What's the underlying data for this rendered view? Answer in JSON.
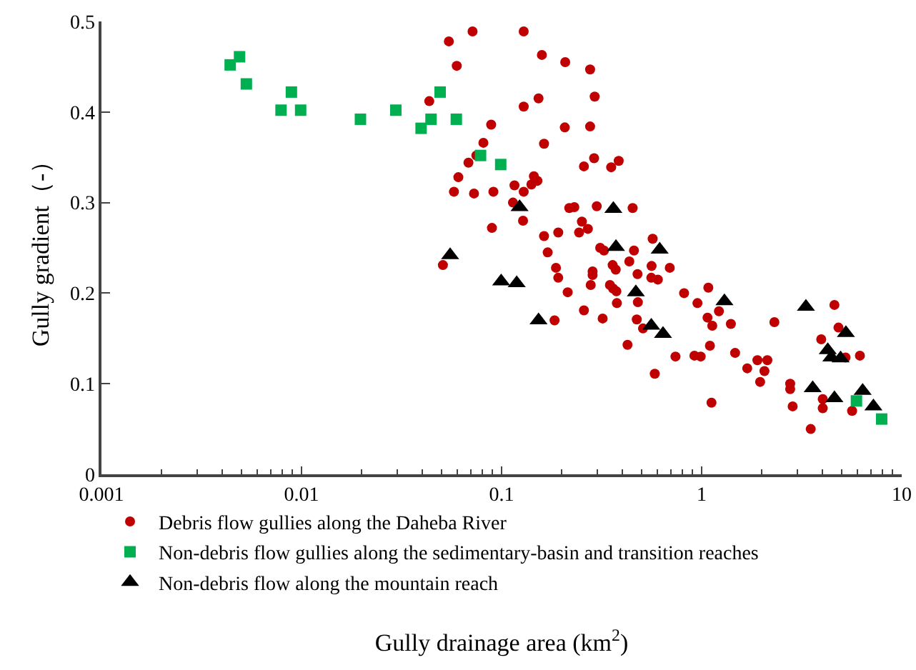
{
  "chart_data": {
    "type": "scatter",
    "xlabel": "Gully drainage area (km$^{2}$)",
    "ylabel": "Gully gradient（-）",
    "log": "x",
    "xlim": [
      0.001,
      10
    ],
    "xticks": [
      0.001,
      0.01,
      0.1,
      1,
      10
    ],
    "ylim": [
      0,
      0.5
    ],
    "yticks": [
      0,
      0.1,
      0.2,
      0.3,
      0.4,
      0.5
    ],
    "grid": false,
    "legend": "bottom left",
    "series": [
      {
        "name": "Debris flow gullies along the Daheba River",
        "color": "#c00000",
        "marker": "circle",
        "x": [
          0.0545,
          0.0716,
          0.129,
          0.0597,
          0.159,
          0.208,
          0.277,
          0.0435,
          0.129,
          0.153,
          0.292,
          0.0887,
          0.207,
          0.277,
          0.0811,
          0.163,
          0.0748,
          0.0683,
          0.29,
          0.258,
          0.353,
          0.385,
          0.0608,
          0.0578,
          0.0728,
          0.091,
          0.116,
          0.129,
          0.141,
          0.145,
          0.151,
          0.114,
          0.128,
          0.0895,
          0.218,
          0.231,
          0.299,
          0.452,
          0.252,
          0.27,
          0.244,
          0.163,
          0.192,
          0.569,
          0.0509,
          0.17,
          0.187,
          0.192,
          0.214,
          0.184,
          0.258,
          0.32,
          0.279,
          0.285,
          0.285,
          0.311,
          0.325,
          0.459,
          0.359,
          0.372,
          0.435,
          0.478,
          0.562,
          0.693,
          0.56,
          0.604,
          0.348,
          0.361,
          0.375,
          0.377,
          0.48,
          0.474,
          0.509,
          0.426,
          0.583,
          0.74,
          0.817,
          0.953,
          1.08,
          1.07,
          1.13,
          1.22,
          1.4,
          1.1,
          0.92,
          0.989,
          1.47,
          1.12,
          1.69,
          1.9,
          2.13,
          2.06,
          1.96,
          2.31,
          2.77,
          2.77,
          2.85,
          3.51,
          4.03,
          4.03,
          3.96,
          4.61,
          4.83,
          6.18,
          5.24,
          5.65
        ],
        "values": [
          0.478,
          0.489,
          0.489,
          0.451,
          0.463,
          0.455,
          0.447,
          0.412,
          0.406,
          0.415,
          0.417,
          0.386,
          0.383,
          0.384,
          0.366,
          0.365,
          0.352,
          0.344,
          0.349,
          0.34,
          0.339,
          0.346,
          0.328,
          0.312,
          0.31,
          0.312,
          0.319,
          0.312,
          0.32,
          0.329,
          0.324,
          0.3,
          0.28,
          0.272,
          0.294,
          0.295,
          0.296,
          0.294,
          0.279,
          0.271,
          0.267,
          0.263,
          0.267,
          0.26,
          0.231,
          0.245,
          0.228,
          0.217,
          0.201,
          0.17,
          0.181,
          0.172,
          0.209,
          0.224,
          0.22,
          0.25,
          0.247,
          0.247,
          0.231,
          0.226,
          0.235,
          0.221,
          0.23,
          0.228,
          0.217,
          0.215,
          0.209,
          0.205,
          0.202,
          0.189,
          0.19,
          0.171,
          0.161,
          0.143,
          0.111,
          0.13,
          0.2,
          0.189,
          0.206,
          0.173,
          0.164,
          0.18,
          0.166,
          0.142,
          0.131,
          0.13,
          0.134,
          0.079,
          0.117,
          0.126,
          0.126,
          0.114,
          0.102,
          0.168,
          0.1,
          0.094,
          0.075,
          0.05,
          0.083,
          0.073,
          0.149,
          0.187,
          0.162,
          0.131,
          0.129,
          0.07
        ]
      },
      {
        "name": "Non-debris flow gullies along the sedimentary-basin and transition reaches",
        "color": "#00b050",
        "marker": "square",
        "x": [
          0.0044,
          0.0049,
          0.0053,
          0.0079,
          0.0089,
          0.0099,
          0.0197,
          0.0296,
          0.0396,
          0.0444,
          0.0493,
          0.0594,
          0.0785,
          0.099,
          5.94,
          7.94
        ],
        "values": [
          0.452,
          0.461,
          0.431,
          0.402,
          0.422,
          0.402,
          0.392,
          0.402,
          0.382,
          0.392,
          0.422,
          0.392,
          0.352,
          0.342,
          0.081,
          0.061
        ]
      },
      {
        "name": "Non-debris flow along the mountain reach",
        "color": "#000000",
        "marker": "triangle",
        "x": [
          0.0553,
          0.0995,
          0.119,
          0.153,
          0.123,
          0.362,
          0.373,
          0.617,
          0.469,
          0.56,
          0.641,
          1.3,
          3.32,
          5.26,
          4.27,
          4.45,
          4.95,
          3.59,
          4.61,
          6.38,
          7.22
        ],
        "values": [
          0.242,
          0.213,
          0.211,
          0.17,
          0.295,
          0.293,
          0.251,
          0.248,
          0.201,
          0.164,
          0.155,
          0.191,
          0.185,
          0.156,
          0.137,
          0.129,
          0.128,
          0.095,
          0.084,
          0.092,
          0.075
        ]
      }
    ]
  }
}
